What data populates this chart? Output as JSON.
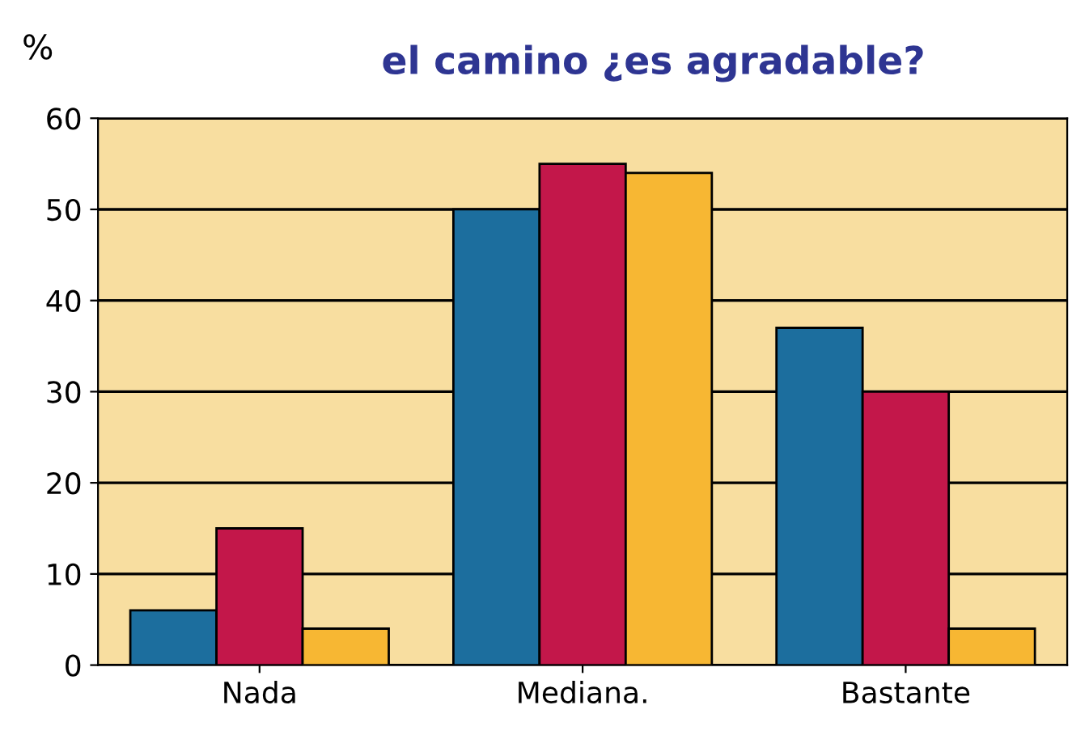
{
  "chart_data": {
    "type": "bar",
    "title": "el camino ¿es agradable?",
    "ylabel": "%",
    "categories": [
      "Nada",
      "Mediana.",
      "Bastante"
    ],
    "series": [
      {
        "color": "#1c6e9e",
        "values": [
          6,
          50,
          37
        ]
      },
      {
        "color": "#c3174a",
        "values": [
          15,
          55,
          30
        ]
      },
      {
        "color": "#f7b733",
        "values": [
          4,
          54,
          4
        ]
      }
    ],
    "ylim": [
      0,
      60
    ],
    "yticks": [
      0,
      10,
      20,
      30,
      40,
      50,
      60
    ],
    "grid": "y"
  }
}
